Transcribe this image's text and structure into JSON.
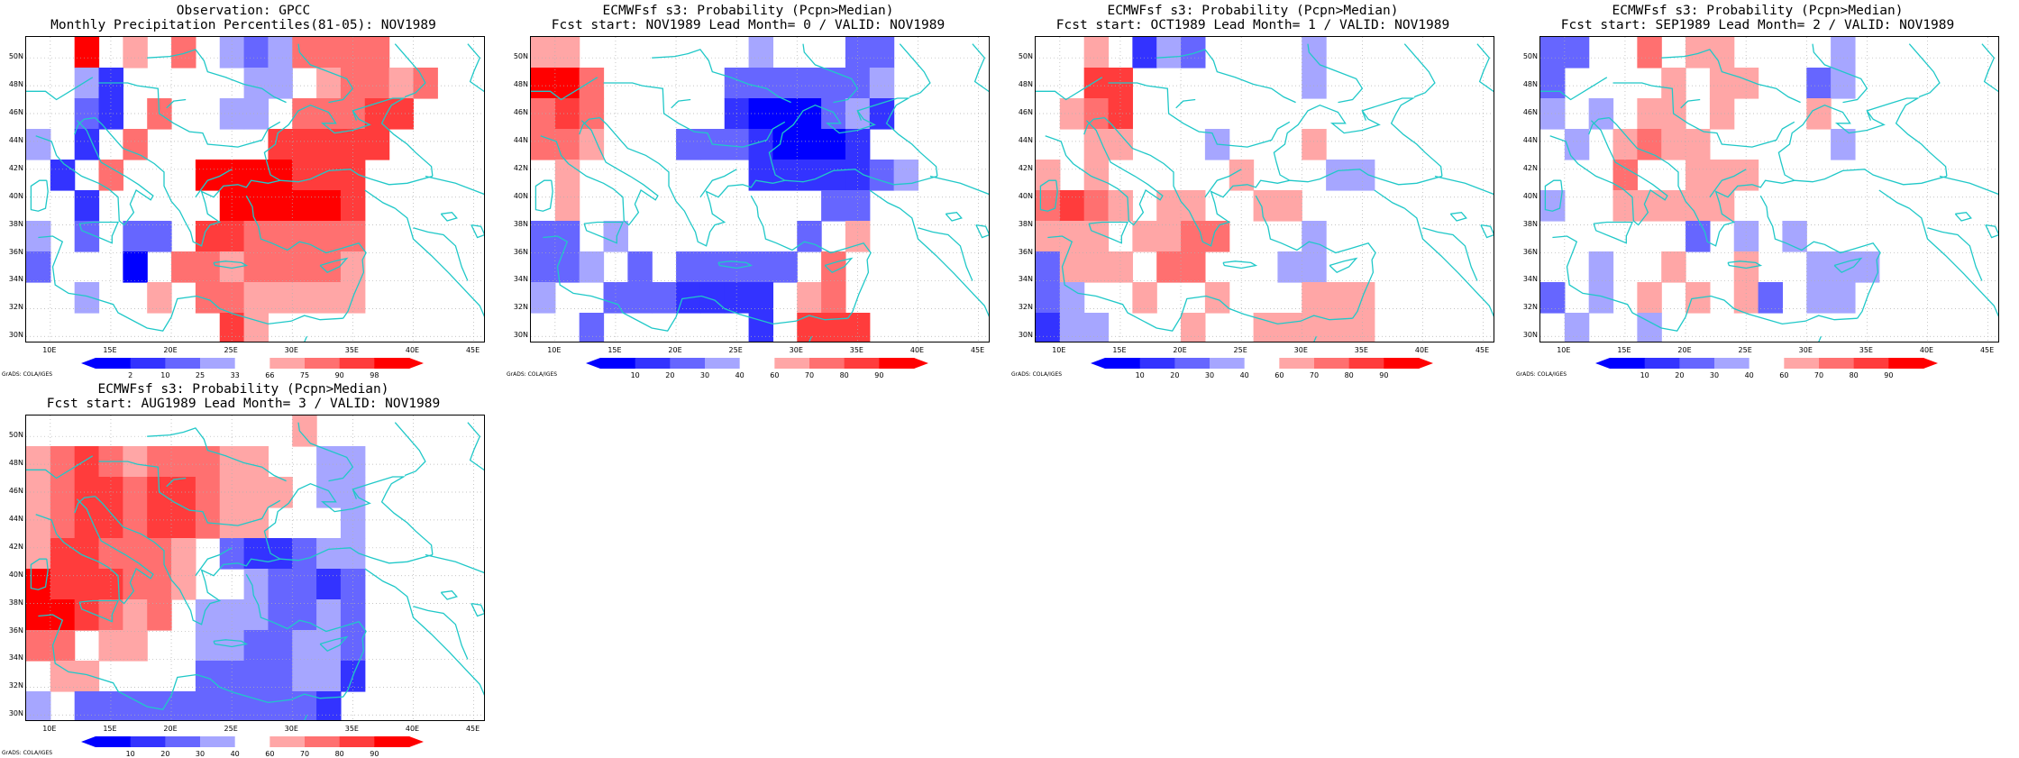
{
  "colors": {
    "blue": [
      "#0000ff",
      "#3333ff",
      "#6666ff",
      "#a6a6ff"
    ],
    "red": [
      "#ffa6a6",
      "#ff7070",
      "#ff3c3c",
      "#ff0000"
    ],
    "coast": "#20c8c8"
  },
  "panels": [
    {
      "title1": "Observation: GPCC",
      "title2": "Monthly Precipitation Percentiles(81-05): NOV1989",
      "colorbar": [
        "2",
        "10",
        "25",
        "33",
        "66",
        "75",
        "90",
        "98"
      ],
      "grid": [
        "..r4.r1.r2.B1B2B1r2r2r2r2",
        "..B1B3.....B1B1.r1r2r2r1r2",
        "..B2B3.r2..B1B1.r2r2r2r3r3",
        "B1.B3.r2.....r3r3r3r3r3",
        ".B3.r2...r4r4r4r4r3r3r3",
        "..B3.....r4r4r4r4r4r3.",
        "B1.B2.B2B2.r3r3r2r2r2r2r2",
        "B2...B4.r2r2r1r2r2r2r2r1",
        "..B1..r1.r2r2r1r1r1r1r1",
        "........r3r1...."
      ]
    },
    {
      "title1": "ECMWFsf s3: Probability (Pcpn>Median)",
      "title2": "Fcst start: NOV1989  Lead Month= 0 / VALID: NOV1989",
      "colorbar": [
        "10",
        "20",
        "30",
        "40",
        "60",
        "70",
        "80",
        "90"
      ],
      "grid": [
        "r1r1.......B1...B2B2",
        "r4r4r2.....B2B2B2B2B2B2B1",
        "r2r3r2.....B3B4B4B4B2B1B3",
        "r2r2r1...B2B2B2B3B4B4B4B3",
        ".r1.......B3B3B3B3B3B2B1",
        ".r1..........B2B2",
        "B2B2.B1.......B2.r1",
        "B2B2B1.B2.B2B2B2B2B2.r2",
        "B1..B2B2B2B3B3B3B3.r1r2",
        "..B2......B3.r3r3r3"
      ]
    },
    {
      "title1": "ECMWFsf s3: Probability (Pcpn>Median)",
      "title2": "Fcst start: OCT1989  Lead Month= 1 / VALID: NOV1989",
      "colorbar": [
        "10",
        "20",
        "30",
        "40",
        "60",
        "70",
        "80",
        "90"
      ],
      "grid": [
        "..r1.B3B1B2....B1.",
        "..r3r3.......B1..",
        ".r1r2r3..........",
        "..r1r1...B1...r1..",
        "r1.r1.....r1...B1B1",
        "r2r3r2r1.r1r1..r1r1...",
        "r1r1r1.r1r1r2r2...B1.",
        "B2r1r1r1.r2r2...B1B1.",
        "B2B1..r1..r1...r1r1r1",
        "B3B1B1...r1..r1r1r1r1r1"
      ]
    },
    {
      "title1": "ECMWFsf s3: Probability (Pcpn>Median)",
      "title2": "Fcst start: SEP1989  Lead Month= 2 / VALID: NOV1989",
      "colorbar": [
        "10",
        "20",
        "30",
        "40",
        "60",
        "70",
        "80",
        "90"
      ],
      "grid": [
        "B2B2..r2.r1r1....B1",
        "B2....r1.r1r1..B2B1.",
        "B1.B1.r1r1.r1...r1",
        ".B1.r1r2r1r1.....B1",
        "...r2..r1r1r1.....",
        "B1..r1r1r1r1r1......",
        "......B2.B1.B1",
        "..B1..r1..r1..B1B1B1",
        "B2.B1.r1.r1.r1B2.B1B1",
        ".B1..B1........"
      ]
    },
    {
      "title1": "ECMWFsf s3: Probability (Pcpn>Median)",
      "title2": "Fcst start: AUG1989  Lead Month= 3 / VALID: NOV1989",
      "colorbar": [
        "10",
        "20",
        "30",
        "40",
        "60",
        "70",
        "80",
        "90"
      ],
      "grid": [
        "...........r1.",
        "r1r2r3r2r1r2r2r2r1r1..B1B1",
        "r1r2r3r3r2r3r3r2r1r1r1.B1B1",
        "r1r2r3r3r2r3r3r2r1r1...B1",
        "r1r3r3r2r2r2r1.B2B3B3B2B1B1",
        "r4r3r3r3r2r2r1..B1B2B2B3B2",
        "r4r4r3r2r1r2.B1B1B1B2B2B1B2",
        "r2r2.r1r1..B1B1B2B2B1B1B2",
        ".r1r1....B2B2B2B2B1B1B3",
        "B1.B2B2B2B2B2B2B2B2B2B2B3"
      ]
    }
  ],
  "axes": {
    "yticks": [
      "50N",
      "48N",
      "46N",
      "44N",
      "42N",
      "40N",
      "38N",
      "36N",
      "34N",
      "32N",
      "30N"
    ],
    "xticks": [
      "10E",
      "15E",
      "20E",
      "25E",
      "30E",
      "35E",
      "40E",
      "45E"
    ]
  },
  "credit": "GrADS: COLA/IGES"
}
